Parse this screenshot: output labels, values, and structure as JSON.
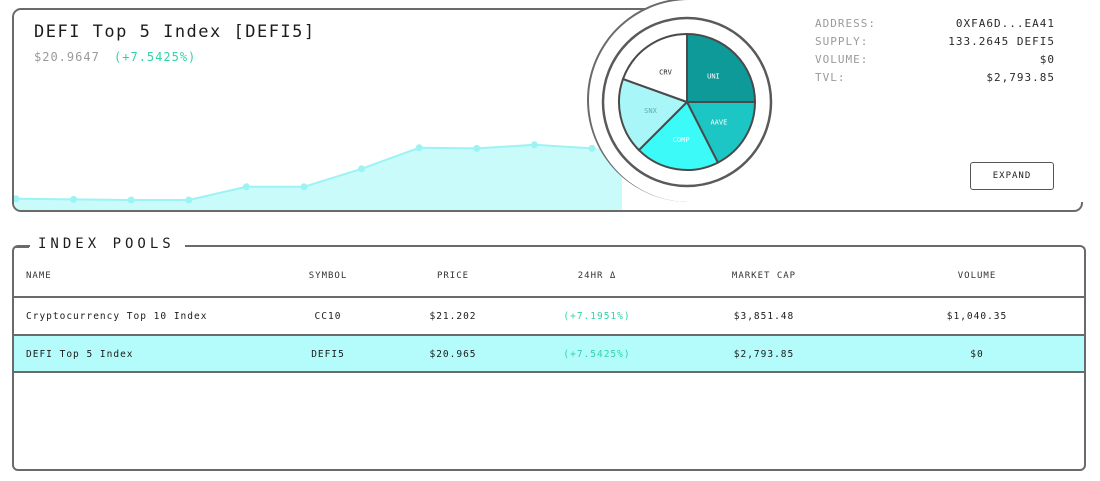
{
  "index": {
    "title": "DEFI Top 5 Index [DEFI5]",
    "price": "$20.9647",
    "change": "(+7.5425%)"
  },
  "colors": {
    "accent": "#2fd4a6",
    "selected_row": "#b3fcfb",
    "area_fill": "#c9fbfa",
    "area_line": "#9cf3f4"
  },
  "price_history": [
    20.12,
    20.11,
    20.1,
    20.1,
    20.32,
    20.32,
    20.62,
    20.97,
    20.96,
    21.02,
    20.96
  ],
  "pie": {
    "slices": [
      {
        "label": "UNI",
        "weight": 0.25,
        "color": "#0e9a98"
      },
      {
        "label": "AAVE",
        "weight": 0.175,
        "color": "#1cc6c4"
      },
      {
        "label": "COMP",
        "weight": 0.2,
        "color": "#3cfaf8"
      },
      {
        "label": "SNX",
        "weight": 0.18,
        "color": "#a9f6f8"
      },
      {
        "label": "CRV",
        "weight": 0.195,
        "color": "#ffffff"
      }
    ]
  },
  "stats": [
    {
      "label": "ADDRESS:",
      "value": "0XFA6D...EA41"
    },
    {
      "label": "SUPPLY:",
      "value": "133.2645 DEFI5"
    },
    {
      "label": "VOLUME:",
      "value": "$0"
    },
    {
      "label": "TVL:",
      "value": "$2,793.85"
    }
  ],
  "expand_label": "EXPAND",
  "pools": {
    "title": "INDEX POOLS",
    "columns": [
      "NAME",
      "SYMBOL",
      "PRICE",
      "24HR Δ",
      "MARKET CAP",
      "VOLUME"
    ],
    "rows": [
      {
        "name": "Cryptocurrency Top 10 Index",
        "symbol": "CC10",
        "price": "$21.202",
        "change": "(+7.1951%)",
        "market_cap": "$3,851.48",
        "volume": "$1,040.35"
      },
      {
        "name": "DEFI Top 5 Index",
        "symbol": "DEFI5",
        "price": "$20.965",
        "change": "(+7.5425%)",
        "market_cap": "$2,793.85",
        "volume": "$0"
      }
    ]
  }
}
